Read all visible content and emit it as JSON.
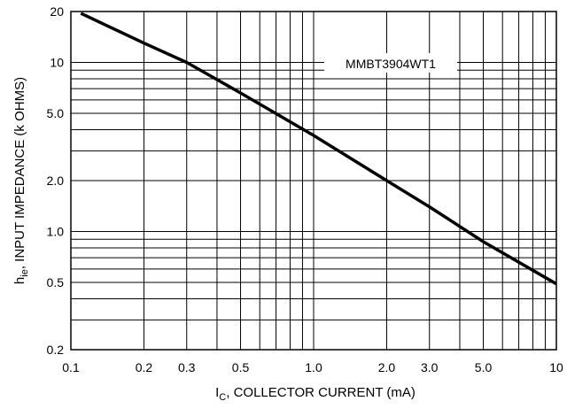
{
  "chart_data": {
    "type": "line",
    "x_scale": "log",
    "y_scale": "log",
    "xlim": [
      0.1,
      10
    ],
    "ylim": [
      0.2,
      20
    ],
    "grid": true,
    "x_grid_lines": [
      0.2,
      0.3,
      0.4,
      0.5,
      0.6,
      0.7,
      0.8,
      0.9,
      1,
      2,
      3,
      4,
      5,
      6,
      7,
      8,
      9
    ],
    "y_grid_lines": [
      0.3,
      0.4,
      0.5,
      0.6,
      0.7,
      0.8,
      0.9,
      1,
      2,
      3,
      4,
      5,
      6,
      7,
      8,
      9,
      10
    ],
    "x_ticks": [
      {
        "value": 0.1,
        "label": "0.1"
      },
      {
        "value": 0.2,
        "label": "0.2"
      },
      {
        "value": 0.3,
        "label": "0.3"
      },
      {
        "value": 0.5,
        "label": "0.5"
      },
      {
        "value": 1,
        "label": "1.0"
      },
      {
        "value": 2,
        "label": "2.0"
      },
      {
        "value": 3,
        "label": "3.0"
      },
      {
        "value": 5,
        "label": "5.0"
      },
      {
        "value": 10,
        "label": "10"
      }
    ],
    "y_ticks": [
      {
        "value": 0.2,
        "label": "0.2"
      },
      {
        "value": 0.5,
        "label": "0.5"
      },
      {
        "value": 1,
        "label": "1.0"
      },
      {
        "value": 2,
        "label": "2.0"
      },
      {
        "value": 5,
        "label": "5.0"
      },
      {
        "value": 10,
        "label": "10"
      },
      {
        "value": 20,
        "label": "20"
      }
    ],
    "xlabel": {
      "main": "I",
      "sub": "C",
      "rest": ", COLLECTOR CURRENT (mA)"
    },
    "ylabel": {
      "main": "h",
      "sub": "ie",
      "rest": ", INPUT IMPEDANCE (k OHMS)"
    },
    "series": [
      {
        "name": "MMBT3904WT1",
        "x": [
          0.11,
          0.2,
          0.3,
          0.5,
          1.0,
          2.0,
          3.0,
          5.0,
          10
        ],
        "y": [
          19.5,
          13.0,
          10.0,
          6.6,
          3.7,
          2.0,
          1.4,
          0.87,
          0.49
        ]
      }
    ]
  }
}
